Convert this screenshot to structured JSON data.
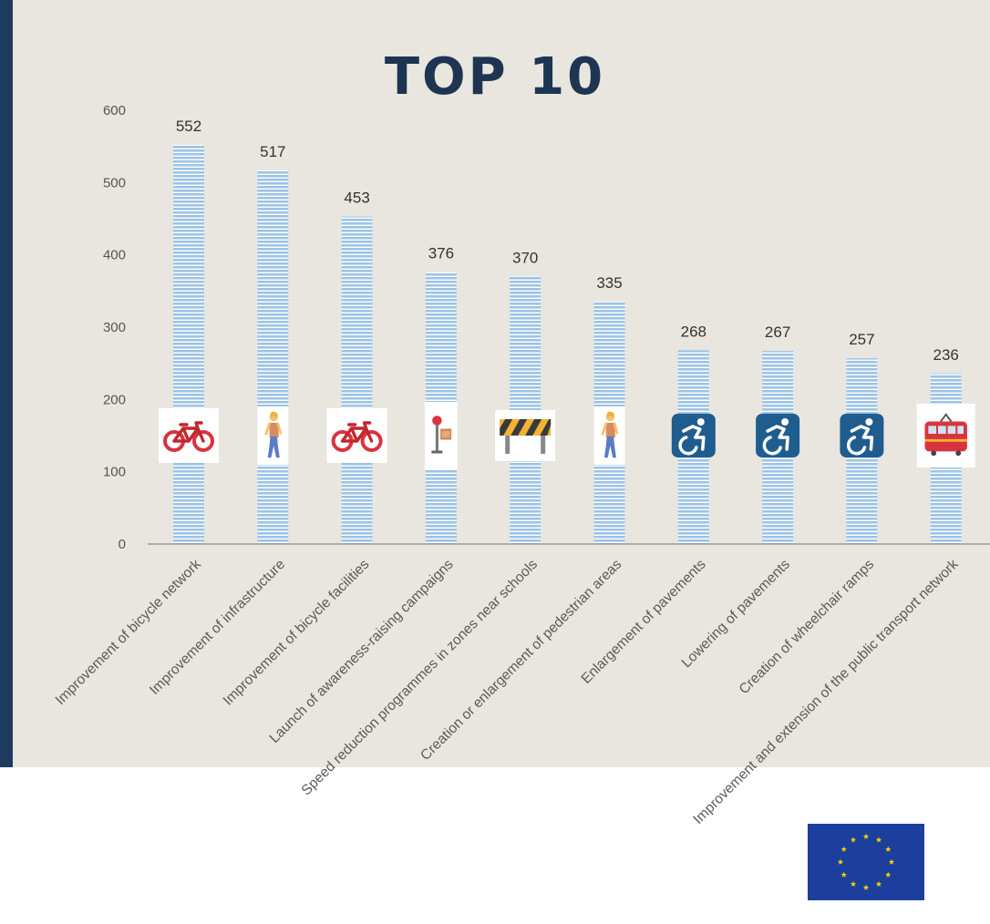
{
  "chart_data": {
    "type": "bar",
    "title": "TOP 10",
    "categories": [
      "Improvement of bicycle network",
      "Improvement of infrastructure",
      "Improvement of bicycle facilities",
      "Launch of awareness-raising campaigns",
      "Speed reduction programmes in zones near schools",
      "Creation or enlargement of pedestrian areas",
      "Enlargement of pavements",
      "Lowering of pavements",
      "Creation of wheelchair ramps",
      "Improvement and extension of the public transport network"
    ],
    "values": [
      552,
      517,
      453,
      376,
      370,
      335,
      268,
      267,
      257,
      236
    ],
    "icons": [
      "bicycle-icon",
      "person-walking-icon",
      "bicycle-icon",
      "signpost-icon",
      "construction-barrier-icon",
      "person-walking-icon",
      "wheelchair-icon",
      "wheelchair-icon",
      "wheelchair-icon",
      "tram-icon"
    ],
    "ylim": [
      0,
      600
    ],
    "yticks": [
      0,
      100,
      200,
      300,
      400,
      500,
      600
    ],
    "grid": false,
    "colors": {
      "bar": "#9cc3e6",
      "bar_stripe": "#ffffff",
      "title": "#1e3552",
      "panel": "#e8e6df",
      "accent": "#1f3a5f"
    }
  },
  "logo": {
    "name": "eu-flag",
    "colors": {
      "field": "#1c3f9e",
      "stars": "#ffd200"
    }
  }
}
